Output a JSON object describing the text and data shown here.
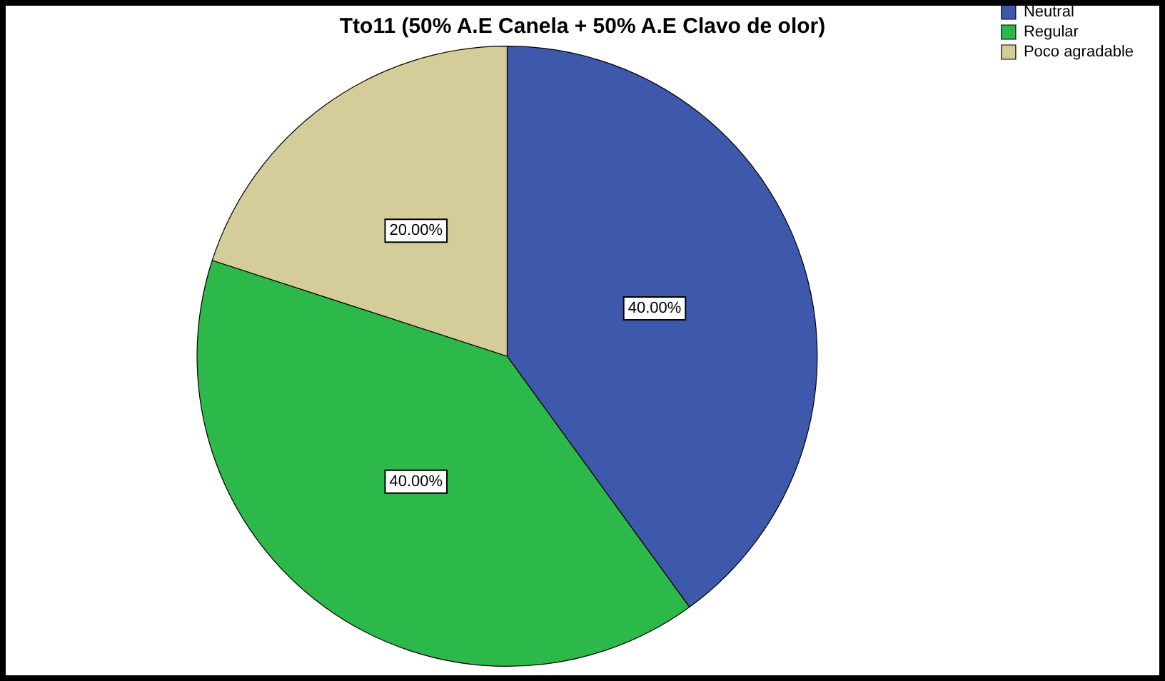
{
  "chart_data": {
    "type": "pie",
    "title": "Tto11 (50% A.E Canela + 50% A.E Clavo de olor)",
    "categories": [
      "Neutral",
      "Regular",
      "Poco agradable"
    ],
    "values": [
      40,
      40,
      20
    ],
    "colors": [
      "#3e58ac",
      "#2db84a",
      "#d4cc99"
    ],
    "value_labels": [
      "40.00%",
      "40.00%",
      "20.00%"
    ],
    "legend": "top right"
  }
}
